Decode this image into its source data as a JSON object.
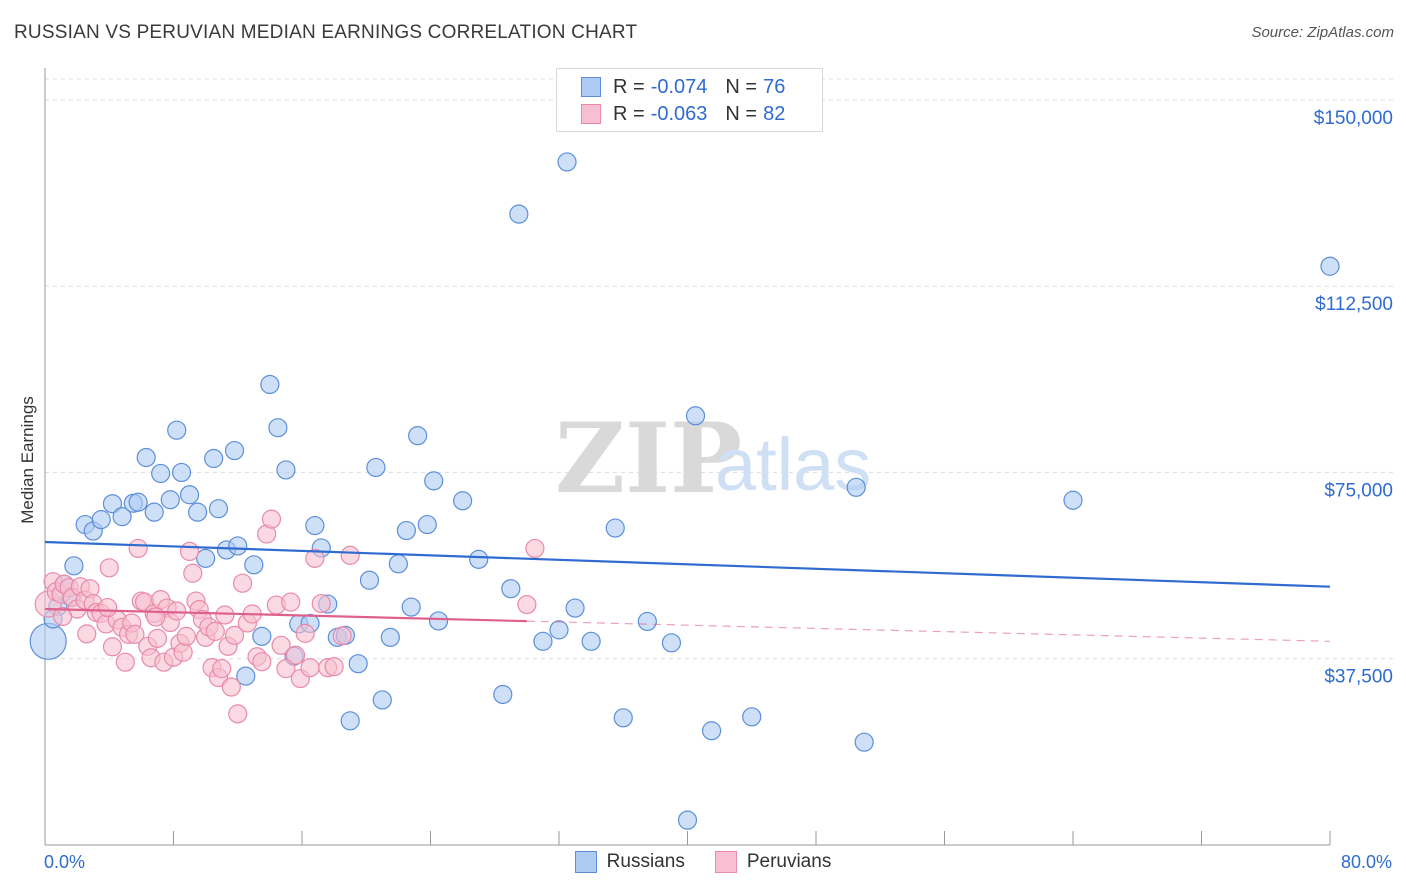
{
  "title": "RUSSIAN VS PERUVIAN MEDIAN EARNINGS CORRELATION CHART",
  "source": "Source: ZipAtlas.com",
  "watermark": {
    "zip": "ZIP",
    "atlas": "atlas"
  },
  "legend_top": [
    {
      "r_label": "R =",
      "r_value": "-0.074",
      "n_label": "N =",
      "n_value": "76"
    },
    {
      "r_label": "R =",
      "r_value": "-0.063",
      "n_label": "N =",
      "n_value": "82"
    }
  ],
  "colors": {
    "russians_fill": "#aecbf3",
    "russians_stroke": "#5d8fd9",
    "russians_line": "#2f6bd1",
    "peruvians_fill": "#f7bfd1",
    "peruvians_stroke": "#e98aa9",
    "peruvians_line": "#e0608c",
    "axis_text": "#2f6bd1",
    "grid": "#dcdcdc"
  },
  "chart_data": {
    "type": "scatter",
    "title": "RUSSIAN VS PERUVIAN MEDIAN EARNINGS CORRELATION CHART",
    "xlabel": "",
    "ylabel": "Median Earnings",
    "xlim": [
      0,
      80
    ],
    "ylim": [
      0,
      155000
    ],
    "x_tick_labels": [
      "0.0%",
      "80.0%"
    ],
    "y_ticks": [
      {
        "value": 37500,
        "label": "$37,500"
      },
      {
        "value": 75000,
        "label": "$75,000"
      },
      {
        "value": 112500,
        "label": "$112,500"
      },
      {
        "value": 150000,
        "label": "$150,000"
      }
    ],
    "grid": true,
    "legend_position": "top-center",
    "series": [
      {
        "name": "Russians",
        "r": -0.074,
        "n": 76,
        "trend": {
          "x": [
            0,
            80
          ],
          "y": [
            61000,
            52000
          ],
          "solid_to": 80
        },
        "points": [
          [
            0.2,
            41000
          ],
          [
            0.8,
            48000
          ],
          [
            1.2,
            52500
          ],
          [
            1.8,
            56200
          ],
          [
            2.5,
            64500
          ],
          [
            3,
            63200
          ],
          [
            3.5,
            65500
          ],
          [
            4.2,
            68700
          ],
          [
            4.8,
            66100
          ],
          [
            5.5,
            68800
          ],
          [
            5.8,
            69000
          ],
          [
            6.3,
            78000
          ],
          [
            6.8,
            67000
          ],
          [
            7.2,
            74800
          ],
          [
            7.8,
            69500
          ],
          [
            8.2,
            83500
          ],
          [
            8.5,
            75000
          ],
          [
            9,
            70500
          ],
          [
            9.5,
            67000
          ],
          [
            10,
            57700
          ],
          [
            10.5,
            77800
          ],
          [
            10.8,
            67700
          ],
          [
            11.3,
            59400
          ],
          [
            11.8,
            79400
          ],
          [
            12,
            60200
          ],
          [
            12.5,
            34000
          ],
          [
            13,
            56400
          ],
          [
            13.5,
            42000
          ],
          [
            14,
            92700
          ],
          [
            14.5,
            84000
          ],
          [
            15,
            75500
          ],
          [
            15.5,
            38000
          ],
          [
            15.8,
            44500
          ],
          [
            16.5,
            44600
          ],
          [
            16.8,
            64300
          ],
          [
            17.2,
            59800
          ],
          [
            17.6,
            48500
          ],
          [
            18.2,
            41800
          ],
          [
            18.7,
            42200
          ],
          [
            19,
            25000
          ],
          [
            19.5,
            36500
          ],
          [
            20.2,
            53300
          ],
          [
            20.6,
            76000
          ],
          [
            21,
            29200
          ],
          [
            21.5,
            41800
          ],
          [
            22,
            56600
          ],
          [
            22.5,
            63300
          ],
          [
            22.8,
            47900
          ],
          [
            23.2,
            82400
          ],
          [
            23.8,
            64500
          ],
          [
            24.2,
            73300
          ],
          [
            24.5,
            45100
          ],
          [
            26,
            69300
          ],
          [
            27,
            57500
          ],
          [
            28.5,
            30300
          ],
          [
            29,
            51600
          ],
          [
            29.5,
            127000
          ],
          [
            31,
            41000
          ],
          [
            32,
            43300
          ],
          [
            32.5,
            137500
          ],
          [
            33,
            47700
          ],
          [
            34,
            41000
          ],
          [
            35.5,
            63800
          ],
          [
            36,
            25600
          ],
          [
            37.5,
            45000
          ],
          [
            39,
            40700
          ],
          [
            40,
            5000
          ],
          [
            40.5,
            86400
          ],
          [
            41.5,
            23000
          ],
          [
            44,
            25800
          ],
          [
            50.5,
            72000
          ],
          [
            51,
            20700
          ],
          [
            64,
            69400
          ],
          [
            80,
            116500
          ],
          [
            0.5,
            45500
          ],
          [
            1.6,
            50000
          ]
        ]
      },
      {
        "name": "Peruvians",
        "r": -0.063,
        "n": 82,
        "trend": {
          "x": [
            0,
            80
          ],
          "y": [
            47500,
            41000
          ],
          "solid_to": 30
        },
        "points": [
          [
            0.2,
            48500
          ],
          [
            0.5,
            53000
          ],
          [
            0.7,
            51000
          ],
          [
            1,
            50500
          ],
          [
            1.2,
            52500
          ],
          [
            1.5,
            51800
          ],
          [
            1.7,
            49800
          ],
          [
            2,
            47500
          ],
          [
            2.2,
            52000
          ],
          [
            2.5,
            49300
          ],
          [
            2.8,
            51600
          ],
          [
            3,
            48600
          ],
          [
            3.2,
            46800
          ],
          [
            3.5,
            46600
          ],
          [
            3.8,
            44500
          ],
          [
            4,
            55800
          ],
          [
            4.2,
            39900
          ],
          [
            4.5,
            45300
          ],
          [
            4.8,
            43800
          ],
          [
            5,
            36800
          ],
          [
            5.2,
            42400
          ],
          [
            5.4,
            44700
          ],
          [
            5.6,
            42400
          ],
          [
            5.8,
            59700
          ],
          [
            6,
            49100
          ],
          [
            6.2,
            48900
          ],
          [
            6.4,
            40000
          ],
          [
            6.6,
            37700
          ],
          [
            6.8,
            46600
          ],
          [
            7,
            41600
          ],
          [
            7.2,
            49400
          ],
          [
            7.4,
            36800
          ],
          [
            7.6,
            47700
          ],
          [
            7.8,
            44800
          ],
          [
            8,
            37800
          ],
          [
            8.2,
            47100
          ],
          [
            8.4,
            40600
          ],
          [
            8.6,
            38800
          ],
          [
            8.8,
            42000
          ],
          [
            9,
            59100
          ],
          [
            9.2,
            54700
          ],
          [
            9.4,
            49100
          ],
          [
            9.6,
            47400
          ],
          [
            9.8,
            45400
          ],
          [
            10,
            41800
          ],
          [
            10.2,
            43900
          ],
          [
            10.4,
            35700
          ],
          [
            10.6,
            43000
          ],
          [
            10.8,
            33700
          ],
          [
            11,
            35500
          ],
          [
            11.2,
            46300
          ],
          [
            11.4,
            40000
          ],
          [
            11.6,
            31800
          ],
          [
            11.8,
            42200
          ],
          [
            12,
            26400
          ],
          [
            12.3,
            52700
          ],
          [
            12.6,
            44700
          ],
          [
            12.9,
            46500
          ],
          [
            13.2,
            37900
          ],
          [
            13.5,
            36900
          ],
          [
            13.8,
            62600
          ],
          [
            14.1,
            65600
          ],
          [
            14.4,
            48300
          ],
          [
            14.7,
            40200
          ],
          [
            15,
            35500
          ],
          [
            15.3,
            48900
          ],
          [
            15.6,
            38200
          ],
          [
            15.9,
            33500
          ],
          [
            16.2,
            42600
          ],
          [
            16.5,
            35700
          ],
          [
            16.8,
            57700
          ],
          [
            17.2,
            48600
          ],
          [
            17.6,
            35700
          ],
          [
            18,
            35900
          ],
          [
            18.5,
            42100
          ],
          [
            19,
            58300
          ],
          [
            30,
            48400
          ],
          [
            30.5,
            59700
          ],
          [
            1.1,
            46000
          ],
          [
            2.6,
            42500
          ],
          [
            3.9,
            47800
          ],
          [
            6.9,
            45900
          ]
        ]
      }
    ]
  }
}
